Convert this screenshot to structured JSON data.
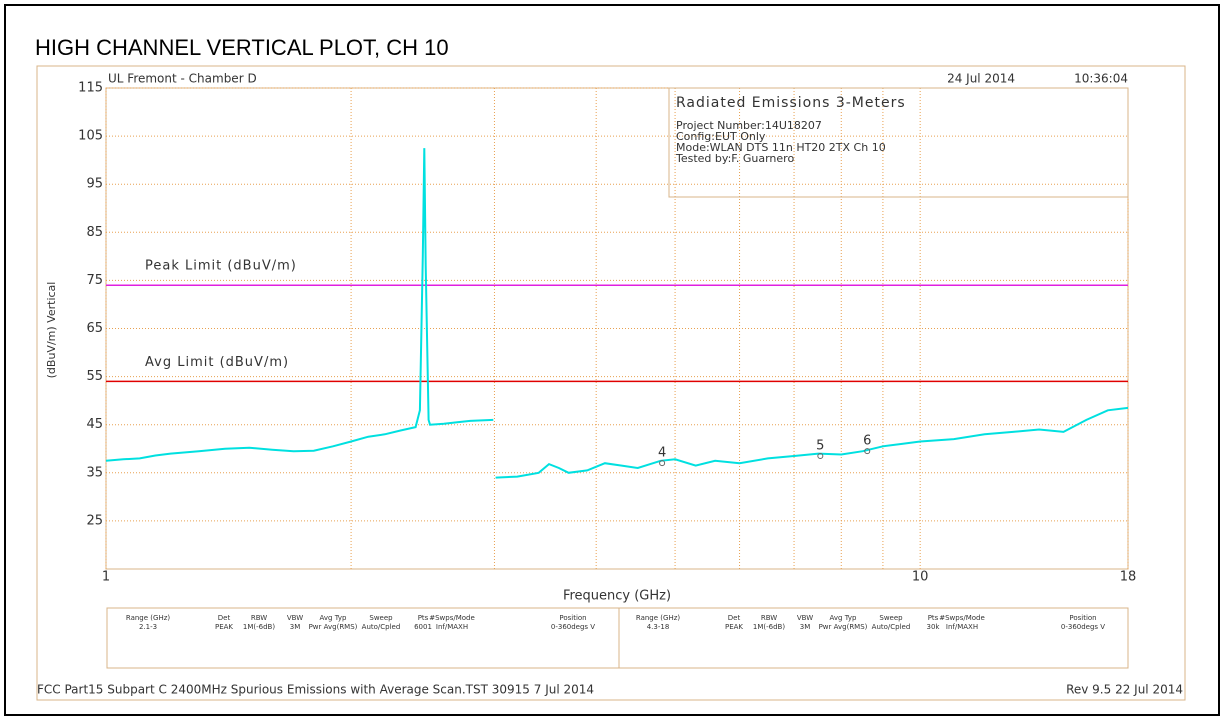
{
  "header": {
    "title": "HIGH CHANNEL VERTICAL PLOT, CH 10",
    "site": "UL Fremont - Chamber D",
    "date": "24 Jul 2014",
    "time": "10:36:04"
  },
  "chart_data": {
    "type": "line",
    "x_label": "Frequency (GHz)",
    "y_label": "(dBuV/m) Vertical",
    "log_x": true,
    "xlim": [
      1,
      18
    ],
    "xticks": [
      1,
      10,
      18
    ],
    "xminor": [
      2,
      3,
      4,
      5,
      6,
      7,
      8,
      9
    ],
    "ylim": [
      15,
      115
    ],
    "yticks": [
      115,
      105,
      95,
      85,
      75,
      65,
      55,
      45,
      35,
      25
    ],
    "grid": true,
    "color": "#00e0e0",
    "x": [
      1,
      1.05,
      1.1,
      1.15,
      1.2,
      1.3,
      1.4,
      1.5,
      1.6,
      1.7,
      1.8,
      1.9,
      2.0,
      2.1,
      2.2,
      2.3,
      2.4,
      2.43,
      2.45,
      2.46,
      2.47,
      2.49,
      2.5,
      2.6,
      2.7,
      2.8,
      2.99,
      3.0,
      3.01,
      3.2,
      3.4,
      3.5,
      3.6,
      3.7,
      3.9,
      4.1,
      4.3,
      4.5,
      4.8,
      5.0,
      5.3,
      5.6,
      6.0,
      6.5,
      7.0,
      7.5,
      8.0,
      8.5,
      9.0,
      9.5,
      10,
      11,
      12,
      13,
      14,
      15,
      16,
      17,
      18
    ],
    "values": [
      37.5,
      37.8,
      38,
      38.6,
      39,
      39.5,
      40,
      40.2,
      39.8,
      39.5,
      39.6,
      40.5,
      41.5,
      42.5,
      43,
      43.8,
      44.5,
      48,
      80,
      102.5,
      78,
      46,
      45,
      45.2,
      45.5,
      45.8,
      46,
      null,
      34,
      34.2,
      35,
      36.8,
      36,
      35,
      35.5,
      37,
      36.5,
      36,
      37.5,
      37.8,
      36.5,
      37.5,
      37,
      38,
      38.5,
      39,
      38.8,
      39.5,
      40.5,
      41,
      41.5,
      42,
      43,
      43.5,
      44,
      43.5,
      46,
      48,
      48.5
    ],
    "limits": [
      {
        "name": "Peak Limit (dBuV/m)",
        "value": 74,
        "color": "#e020e0"
      },
      {
        "name": "Avg Limit (dBuV/m)",
        "value": 54,
        "color": "#e00000"
      }
    ],
    "markers": [
      {
        "label": "4",
        "x": 4.82,
        "y": 37
      },
      {
        "label": "5",
        "x": 7.54,
        "y": 38.5
      },
      {
        "label": "6",
        "x": 8.61,
        "y": 39.5
      }
    ]
  },
  "info_box": {
    "title": "Radiated Emissions 3-Meters",
    "lines": [
      "Project Number:14U18207",
      "Config:EUT Only",
      "Mode:WLAN DTS 11n HT20 2TX Ch 10",
      "Tested by:F. Guarnero"
    ]
  },
  "settings_table": {
    "columns": [
      "Range (GHz)",
      "Det",
      "RBW",
      "VBW",
      "Avg Typ",
      "Sweep",
      "Pts",
      "#Swps/Mode",
      "Position"
    ],
    "rows": [
      [
        "2.1-3",
        "PEAK",
        "1M(-6dB)",
        "3M",
        "Pwr Avg(RMS)",
        "Auto/Cpled",
        "6001",
        "Inf/MAXH",
        "0-360degs V"
      ],
      [
        "4.3-18",
        "PEAK",
        "1M(-6dB)",
        "3M",
        "Pwr Avg(RMS)",
        "Auto/Cpled",
        "30k",
        "Inf/MAXH",
        "0-360degs V"
      ]
    ]
  },
  "footer": {
    "left": "FCC Part15 Subpart C 2400MHz Spurious Emissions with Average Scan.TST 30915  7 Jul 2014",
    "right": "Rev 9.5 22 Jul 2014"
  }
}
